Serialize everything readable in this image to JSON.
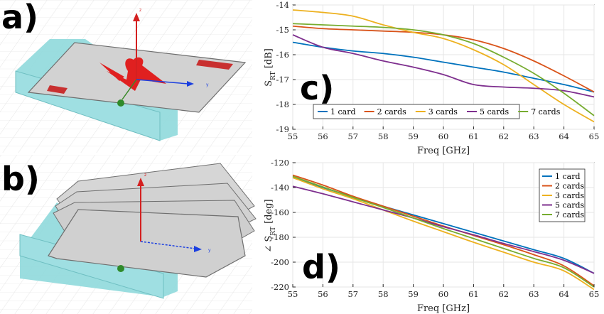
{
  "panels": {
    "a": "a)",
    "b": "b)",
    "c": "c)",
    "d": "d)"
  },
  "diagram_axes": {
    "z": "z",
    "y": "y"
  },
  "colors": {
    "substrate": "#8fd9dc",
    "card": "#d2d2d2",
    "card_edge": "#6f6f6f",
    "antenna": "#e02020",
    "z_axis": "#d42020",
    "y_axis": "#1b3fe0",
    "x_axis": "#3a8a2a",
    "grid": "#e4e4e4"
  },
  "chart_data": [
    {
      "id": "c",
      "type": "line",
      "xlabel": "Freq [GHz]",
      "ylabel": "S_RT [dB]",
      "xlim": [
        55,
        65
      ],
      "ylim": [
        -19,
        -14
      ],
      "xticks": [
        55,
        56,
        57,
        58,
        59,
        60,
        61,
        62,
        63,
        64,
        65
      ],
      "yticks": [
        -14,
        -15,
        -16,
        -17,
        -18,
        -19
      ],
      "grid": true,
      "legend_position": "bottom-left-horizontal",
      "series": [
        {
          "name": "1 card",
          "color": "#0072bd",
          "x": [
            55,
            56,
            57,
            58,
            59,
            60,
            61,
            62,
            63,
            64,
            65
          ],
          "y": [
            -15.5,
            -15.7,
            -15.85,
            -15.95,
            -16.1,
            -16.3,
            -16.5,
            -16.7,
            -16.95,
            -17.2,
            -17.5
          ]
        },
        {
          "name": "2 cards",
          "color": "#d95319",
          "x": [
            55,
            56,
            57,
            58,
            59,
            60,
            61,
            62,
            63,
            64,
            65
          ],
          "y": [
            -14.85,
            -14.95,
            -15.0,
            -15.05,
            -15.1,
            -15.2,
            -15.4,
            -15.75,
            -16.25,
            -16.85,
            -17.5
          ]
        },
        {
          "name": "3 cards",
          "color": "#edb120",
          "x": [
            55,
            56,
            57,
            58,
            59,
            60,
            61,
            62,
            63,
            64,
            65
          ],
          "y": [
            -14.2,
            -14.3,
            -14.45,
            -14.8,
            -15.1,
            -15.35,
            -15.8,
            -16.4,
            -17.2,
            -18.0,
            -18.7
          ]
        },
        {
          "name": "5 cards",
          "color": "#7e2f8e",
          "x": [
            55,
            56,
            57,
            58,
            59,
            60,
            61,
            62,
            63,
            64,
            65
          ],
          "y": [
            -15.2,
            -15.7,
            -15.95,
            -16.25,
            -16.5,
            -16.8,
            -17.2,
            -17.3,
            -17.35,
            -17.45,
            -17.7
          ]
        },
        {
          "name": "7 cards",
          "color": "#77ac30",
          "x": [
            55,
            56,
            57,
            58,
            59,
            60,
            61,
            62,
            63,
            64,
            65
          ],
          "y": [
            -14.75,
            -14.8,
            -14.85,
            -14.9,
            -15.0,
            -15.2,
            -15.55,
            -16.1,
            -16.75,
            -17.55,
            -18.45
          ]
        }
      ]
    },
    {
      "id": "d",
      "type": "line",
      "xlabel": "Freq [GHz]",
      "ylabel": "∠ S_RT [deg]",
      "xlim": [
        55,
        65
      ],
      "ylim": [
        -220,
        -120
      ],
      "xticks": [
        55,
        56,
        57,
        58,
        59,
        60,
        61,
        62,
        63,
        64,
        65
      ],
      "yticks": [
        -120,
        -140,
        -160,
        -180,
        -200,
        -220
      ],
      "grid": true,
      "legend_position": "top-right",
      "series": [
        {
          "name": "1 card",
          "color": "#0072bd",
          "x": [
            55,
            56,
            57,
            58,
            59,
            60,
            61,
            62,
            63,
            64,
            65
          ],
          "y": [
            -132,
            -140,
            -147.5,
            -155,
            -162,
            -169,
            -176,
            -183,
            -190,
            -197,
            -209
          ]
        },
        {
          "name": "2 cards",
          "color": "#d95319",
          "x": [
            55,
            56,
            57,
            58,
            59,
            60,
            61,
            62,
            63,
            64,
            65
          ],
          "y": [
            -130,
            -138,
            -147,
            -155,
            -163,
            -171,
            -178.5,
            -186,
            -194,
            -203,
            -219
          ]
        },
        {
          "name": "3 cards",
          "color": "#edb120",
          "x": [
            55,
            56,
            57,
            58,
            59,
            60,
            61,
            62,
            63,
            64,
            65
          ],
          "y": [
            -132,
            -141,
            -149,
            -158,
            -167,
            -175.5,
            -184,
            -192,
            -200,
            -207,
            -222
          ]
        },
        {
          "name": "5 cards",
          "color": "#7e2f8e",
          "x": [
            55,
            56,
            57,
            58,
            59,
            60,
            61,
            62,
            63,
            64,
            65
          ],
          "y": [
            -139,
            -145,
            -151.5,
            -158,
            -164.5,
            -171.5,
            -178,
            -185,
            -191.5,
            -198.5,
            -209
          ]
        },
        {
          "name": "7 cards",
          "color": "#77ac30",
          "x": [
            55,
            56,
            57,
            58,
            59,
            60,
            61,
            62,
            63,
            64,
            65
          ],
          "y": [
            -131,
            -139.5,
            -148,
            -156,
            -164.5,
            -173,
            -181,
            -189,
            -197,
            -204.5,
            -220
          ]
        }
      ]
    }
  ]
}
